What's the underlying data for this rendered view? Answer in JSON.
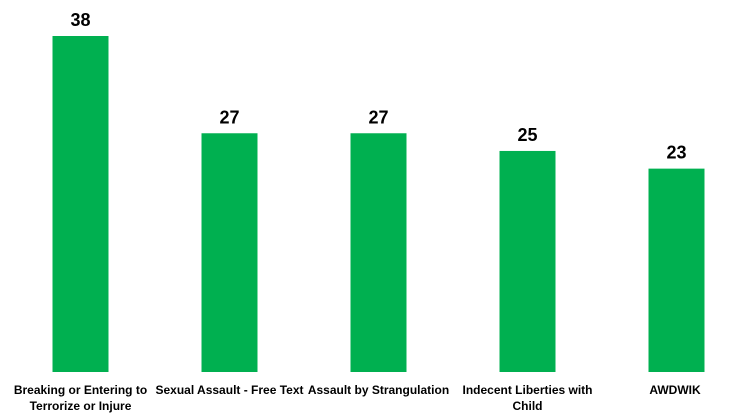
{
  "chart_data": {
    "type": "bar",
    "categories": [
      "Breaking or Entering to Terrorize or Injure",
      "Sexual Assault - Free Text",
      "Assault by Strangulation",
      "Indecent Liberties with Child",
      "AWDWIK"
    ],
    "values": [
      38,
      27,
      27,
      25,
      23
    ],
    "color": "#00b050"
  }
}
